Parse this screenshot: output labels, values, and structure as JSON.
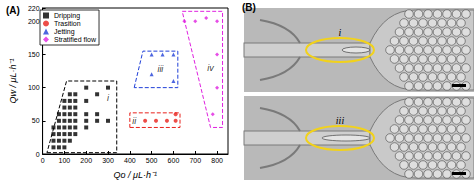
{
  "chart_data": {
    "type": "scatter",
    "title": "(A)",
    "x_label": "Qo / μL·h⁻¹",
    "y_label": "Qw / μL·h⁻¹",
    "xlim": [
      0,
      850
    ],
    "xticks": [
      0,
      100,
      200,
      300,
      400,
      500,
      600,
      700,
      800
    ],
    "ylim": [
      0,
      220
    ],
    "yticks": [
      0,
      50,
      100,
      150,
      200
    ],
    "legend": "upper left",
    "series": [
      {
        "name": "Dripping",
        "color": "#000000",
        "marker": "square",
        "x": [
          50,
          50,
          50,
          50,
          75,
          75,
          75,
          75,
          75,
          75,
          100,
          100,
          100,
          100,
          100,
          100,
          100,
          100,
          125,
          125,
          125,
          125,
          125,
          125,
          125,
          125,
          150,
          150,
          150,
          150,
          150,
          150,
          150,
          200,
          200,
          200,
          200,
          200,
          250,
          250,
          250,
          300,
          300
        ],
        "values": [
          10,
          20,
          30,
          40,
          10,
          20,
          30,
          40,
          50,
          60,
          10,
          20,
          30,
          40,
          50,
          60,
          70,
          80,
          20,
          30,
          40,
          50,
          60,
          70,
          80,
          90,
          30,
          40,
          50,
          60,
          70,
          80,
          90,
          40,
          50,
          60,
          80,
          100,
          50,
          60,
          90,
          50,
          100
        ]
      },
      {
        "name": "Trasition",
        "color": "#e8201a",
        "marker": "circle",
        "x": [
          470,
          520,
          570,
          610,
          610
        ],
        "values": [
          50,
          50,
          50,
          50,
          60
        ]
      },
      {
        "name": "Jetting",
        "color": "#1f3fd8",
        "marker": "triangle",
        "x": [
          500,
          550,
          600,
          500,
          600
        ],
        "values": [
          150,
          150,
          150,
          120,
          110
        ]
      },
      {
        "name": "Stratified flow",
        "color": "#e020e0",
        "marker": "diamond",
        "x": [
          650,
          700,
          750,
          800,
          800,
          800,
          780
        ],
        "values": [
          200,
          200,
          205,
          200,
          150,
          100,
          60
        ]
      }
    ],
    "annotations": [
      {
        "text": "i",
        "x": 300,
        "y": 85,
        "color": "#000000",
        "line_style": "dashed",
        "outline": [
          [
            20,
            2
          ],
          [
            340,
            2
          ],
          [
            340,
            110
          ],
          [
            110,
            110
          ]
        ]
      },
      {
        "text": "ii",
        "x": 420,
        "y": 50,
        "color": "#e8201a",
        "line_style": "dashed",
        "outline": [
          [
            400,
            40
          ],
          [
            630,
            40
          ],
          [
            630,
            62
          ],
          [
            400,
            62
          ]
        ]
      },
      {
        "text": "iii",
        "x": 540,
        "y": 128,
        "color": "#1f3fd8",
        "line_style": "dashed",
        "outline": [
          [
            420,
            100
          ],
          [
            460,
            155
          ],
          [
            620,
            155
          ],
          [
            620,
            100
          ]
        ]
      },
      {
        "text": "iv",
        "x": 770,
        "y": 130,
        "color": "#e020e0",
        "line_style": "dashed",
        "outline": [
          [
            640,
            215
          ],
          [
            825,
            215
          ],
          [
            825,
            40
          ],
          [
            770,
            40
          ]
        ]
      }
    ]
  },
  "panel_b": {
    "label": "(B)",
    "insets": [
      "i",
      "iii"
    ]
  }
}
